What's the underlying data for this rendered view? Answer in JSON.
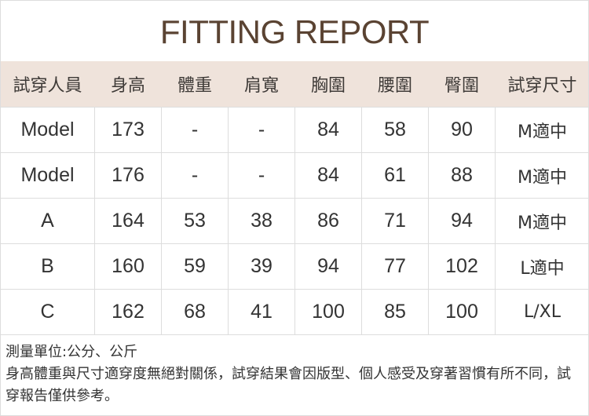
{
  "title": "FITTING REPORT",
  "headers": [
    "試穿人員",
    "身高",
    "體重",
    "肩寬",
    "胸圍",
    "腰圍",
    "臀圍",
    "試穿尺寸"
  ],
  "rows": [
    [
      "Model",
      "173",
      "-",
      "-",
      "84",
      "58",
      "90",
      "M適中"
    ],
    [
      "Model",
      "176",
      "-",
      "-",
      "84",
      "61",
      "88",
      "M適中"
    ],
    [
      "A",
      "164",
      "53",
      "38",
      "86",
      "71",
      "94",
      "M適中"
    ],
    [
      "B",
      "160",
      "59",
      "39",
      "94",
      "77",
      "102",
      "L適中"
    ],
    [
      "C",
      "162",
      "68",
      "41",
      "100",
      "85",
      "100",
      "L/XL"
    ]
  ],
  "notes": [
    "測量單位:公分、公斤",
    "身高體重與尺寸適穿度無絕對關係，試穿結果會因版型、個人感受及穿著習慣有所不同，試穿報告僅供參考。"
  ],
  "colors": {
    "title": "#5a4332",
    "header_bg": "#efe3db"
  }
}
